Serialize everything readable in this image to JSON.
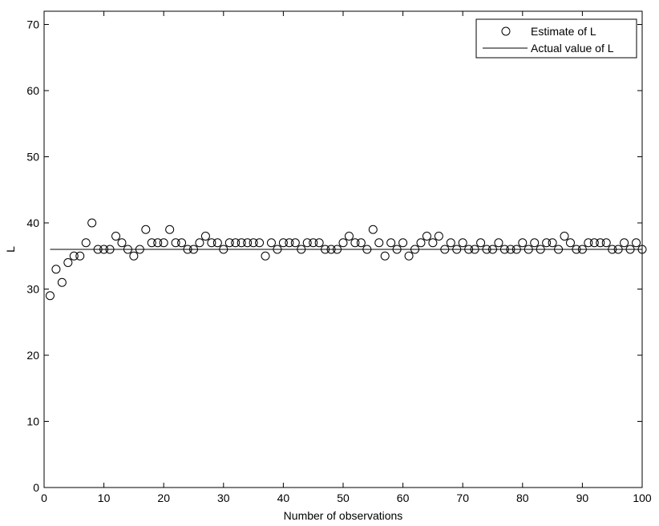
{
  "chart_data": {
    "type": "scatter",
    "title": "",
    "xlabel": "Number of observations",
    "ylabel": "L",
    "xlim": [
      0,
      100
    ],
    "ylim": [
      0,
      72
    ],
    "xticks": [
      "0",
      "10",
      "20",
      "30",
      "40",
      "50",
      "60",
      "70",
      "80",
      "90",
      "100"
    ],
    "yticks": [
      "0",
      "10",
      "20",
      "30",
      "40",
      "50",
      "60",
      "70"
    ],
    "grid": false,
    "legend_position": "top-right",
    "series": [
      {
        "name": "Estimate of L",
        "marker": "open-circle",
        "color": "#000000",
        "x": [
          1,
          2,
          3,
          4,
          5,
          6,
          7,
          8,
          9,
          10,
          11,
          12,
          13,
          14,
          15,
          16,
          17,
          18,
          19,
          20,
          21,
          22,
          23,
          24,
          25,
          26,
          27,
          28,
          29,
          30,
          31,
          32,
          33,
          34,
          35,
          36,
          37,
          38,
          39,
          40,
          41,
          42,
          43,
          44,
          45,
          46,
          47,
          48,
          49,
          50,
          51,
          52,
          53,
          54,
          55,
          56,
          57,
          58,
          59,
          60,
          61,
          62,
          63,
          64,
          65,
          66,
          67,
          68,
          69,
          70,
          71,
          72,
          73,
          74,
          75,
          76,
          77,
          78,
          79,
          80,
          81,
          82,
          83,
          84,
          85,
          86,
          87,
          88,
          89,
          90,
          91,
          92,
          93,
          94,
          95,
          96,
          97,
          98,
          99,
          100
        ],
        "y": [
          29,
          33,
          31,
          34,
          35,
          35,
          37,
          40,
          36,
          36,
          36,
          38,
          37,
          36,
          35,
          36,
          39,
          37,
          37,
          37,
          39,
          37,
          37,
          36,
          36,
          37,
          38,
          37,
          37,
          36,
          37,
          37,
          37,
          37,
          37,
          37,
          35,
          37,
          36,
          37,
          37,
          37,
          36,
          37,
          37,
          37,
          36,
          36,
          36,
          37,
          38,
          37,
          37,
          36,
          39,
          37,
          35,
          37,
          36,
          37,
          35,
          36,
          37,
          38,
          37,
          38,
          36,
          37,
          36,
          37,
          36,
          36,
          37,
          36,
          36,
          37,
          36,
          36,
          36,
          37,
          36,
          37,
          36,
          37,
          37,
          36,
          38,
          37,
          36,
          36,
          37,
          37,
          37,
          37,
          36,
          36,
          37,
          36,
          37,
          36
        ]
      },
      {
        "name": "Actual value of L",
        "line": "solid",
        "color": "#000000",
        "y_constant": 36,
        "x_range": [
          1,
          100
        ]
      }
    ]
  }
}
